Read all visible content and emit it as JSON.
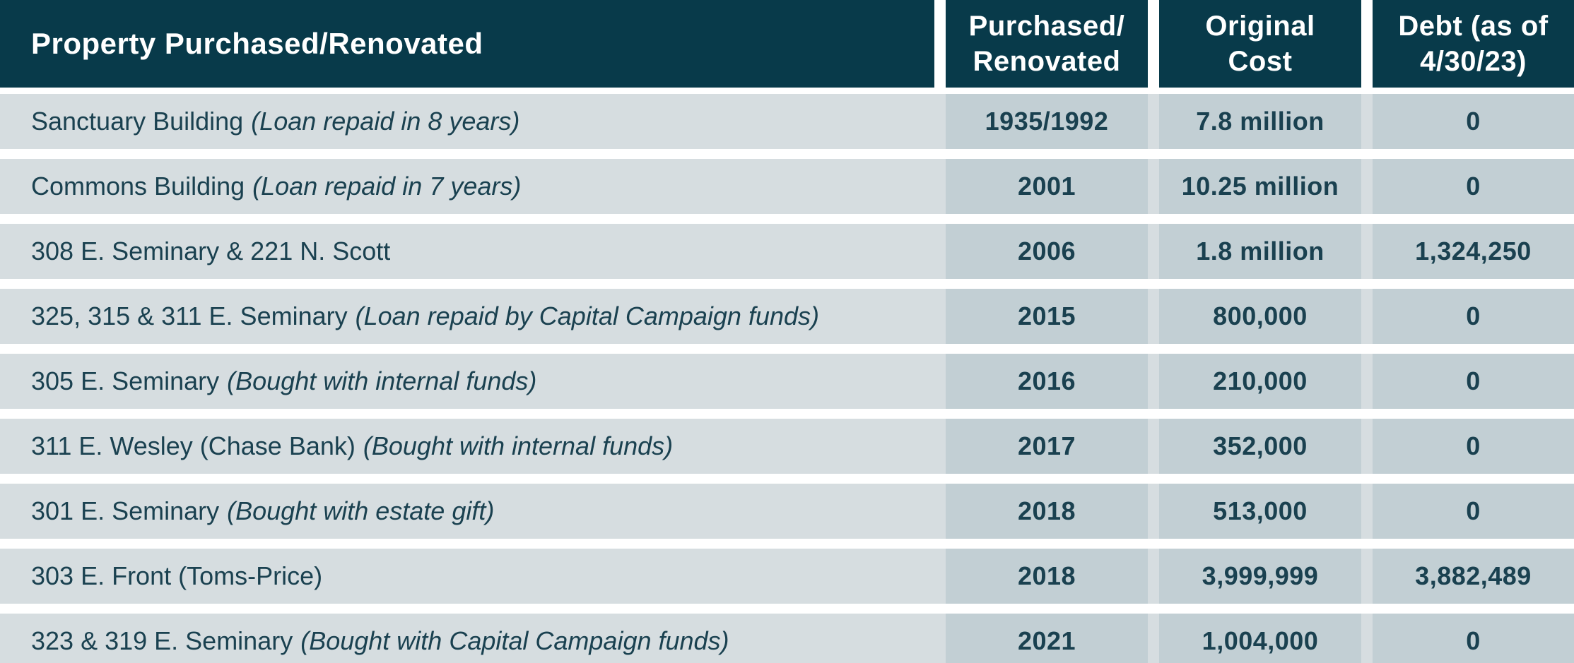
{
  "colors": {
    "header_bg": "#083a4a",
    "header_text": "#ffffff",
    "row_bg": "#d6dde0",
    "cell_bg": "#c2cfd4",
    "text": "#1a4150"
  },
  "table": {
    "columns": [
      {
        "label": "Property Purchased/Renovated"
      },
      {
        "label": "Purchased/\nRenovated"
      },
      {
        "label": "Original\nCost"
      },
      {
        "label": "Debt (as of\n4/30/23)"
      }
    ],
    "rows": [
      {
        "property": "Sanctuary Building",
        "note": "(Loan repaid in 8 years)",
        "purchased": "1935/1992",
        "cost": "7.8 million",
        "debt": "0"
      },
      {
        "property": "Commons Building",
        "note": "(Loan repaid in 7 years)",
        "purchased": "2001",
        "cost": "10.25 million",
        "debt": "0"
      },
      {
        "property": "308 E. Seminary & 221 N. Scott",
        "note": "",
        "purchased": "2006",
        "cost": "1.8 million",
        "debt": "1,324,250"
      },
      {
        "property": "325, 315 & 311 E. Seminary",
        "note": "(Loan repaid by Capital Campaign funds)",
        "purchased": "2015",
        "cost": "800,000",
        "debt": "0"
      },
      {
        "property": "305 E. Seminary",
        "note": "(Bought with internal funds)",
        "purchased": "2016",
        "cost": "210,000",
        "debt": "0"
      },
      {
        "property": "311 E. Wesley (Chase Bank)",
        "note": "(Bought with internal funds)",
        "purchased": "2017",
        "cost": "352,000",
        "debt": "0"
      },
      {
        "property": "301 E. Seminary",
        "note": "(Bought with estate gift)",
        "purchased": "2018",
        "cost": "513,000",
        "debt": "0"
      },
      {
        "property": "303 E. Front (Toms-Price)",
        "note": "",
        "purchased": "2018",
        "cost": "3,999,999",
        "debt": "3,882,489"
      },
      {
        "property": "323 & 319 E. Seminary",
        "note": "(Bought with Capital Campaign funds)",
        "purchased": "2021",
        "cost": "1,004,000",
        "debt": "0"
      }
    ]
  }
}
